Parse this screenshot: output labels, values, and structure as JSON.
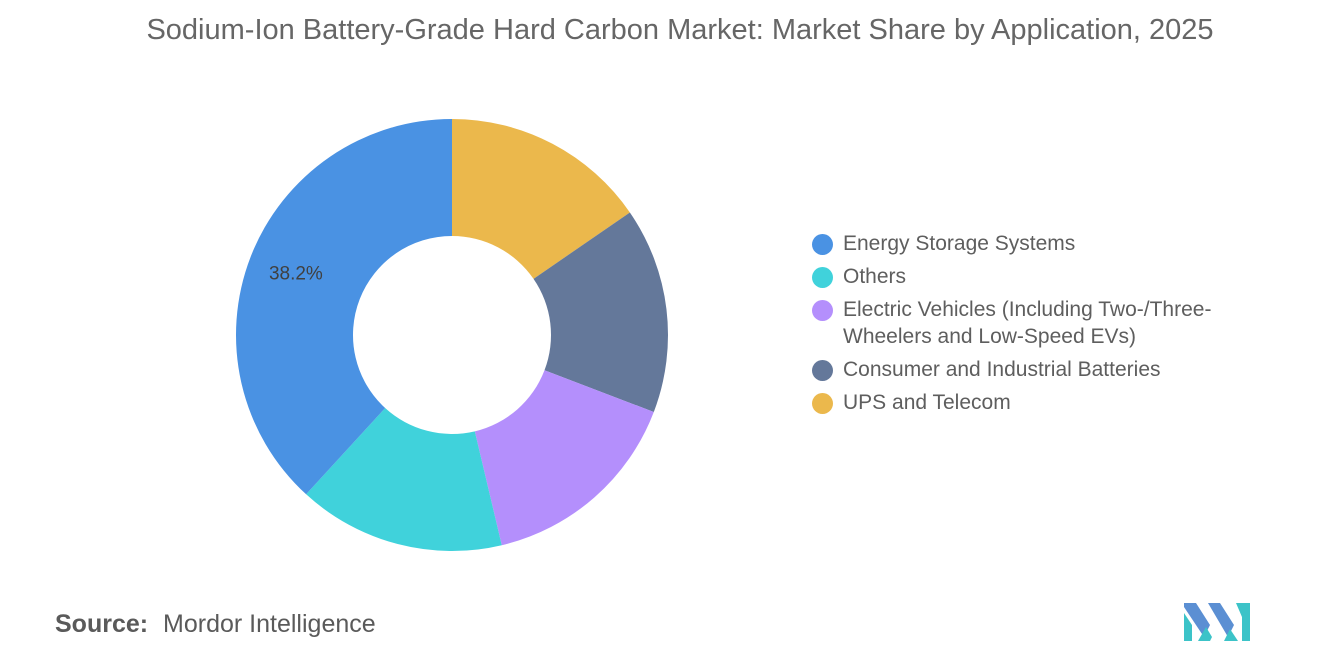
{
  "chart_data": {
    "type": "pie",
    "title": "Sodium-Ion Battery-Grade Hard Carbon Market: Market Share by Application, 2025",
    "categories": [
      "UPS and Telecom",
      "Consumer and Industrial Batteries",
      "Electric Vehicles (Including Two-/Three-Wheelers and Low-Speed EVs)",
      "Others",
      "Energy Storage Systems"
    ],
    "values": [
      15.4,
      15.4,
      15.5,
      15.5,
      38.2
    ],
    "colors": [
      "#ebb84c",
      "#64789a",
      "#b48ffc",
      "#40d2db",
      "#4a92e3"
    ],
    "data_labels": [
      "",
      "",
      "",
      "",
      "38.2%"
    ],
    "legend": {
      "placement": "right",
      "items": [
        {
          "label": "Energy Storage Systems",
          "color": "#4a92e3"
        },
        {
          "label": "Others",
          "color": "#40d2db"
        },
        {
          "label": "Electric Vehicles (Including Two-/Three-Wheelers and Low-Speed EVs)",
          "color": "#b48ffc"
        },
        {
          "label": "Consumer and Industrial Batteries",
          "color": "#64789a"
        },
        {
          "label": "UPS and Telecom",
          "color": "#ebb84c"
        }
      ]
    },
    "donut": true
  },
  "source": {
    "label": "Source:",
    "text": "Mordor Intelligence"
  },
  "logo": {
    "icon": "mordor-intelligence-logo-icon",
    "colors": [
      "#5b8fd3",
      "#3cc3c8"
    ]
  }
}
